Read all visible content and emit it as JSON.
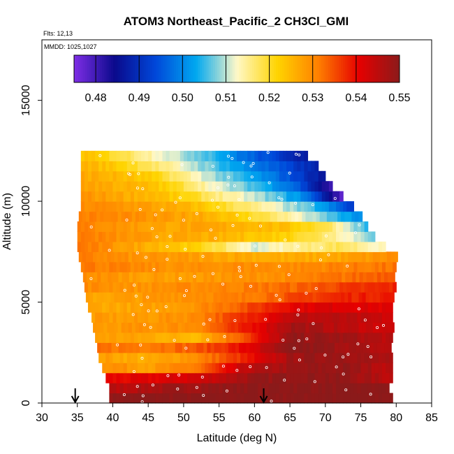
{
  "chart_data": {
    "type": "heatmap",
    "title": "ATOM3 Northeast_Pacific_2 CH3Cl_GMI",
    "flights_label": "Flts: 12,13",
    "dates_label": "MMDD: 1025,1027",
    "xlabel": "Latitude (deg N)",
    "ylabel": "Altitude (m)",
    "xlim": [
      30,
      85
    ],
    "ylim": [
      0,
      18000
    ],
    "x_ticks": [
      "30",
      "35",
      "40",
      "45",
      "50",
      "55",
      "60",
      "65",
      "70",
      "75",
      "80",
      "85"
    ],
    "y_ticks": [
      "0",
      "5000",
      "10000",
      "15000"
    ],
    "colorbar": {
      "range": [
        0.475,
        0.55
      ],
      "tick_labels": [
        "0.48",
        "0.49",
        "0.50",
        "0.51",
        "0.52",
        "0.53",
        "0.54",
        "0.55"
      ],
      "colors": [
        "#7f2ee6",
        "#0a0a8c",
        "#0047d9",
        "#00a8f0",
        "#fff8c8",
        "#ffd400",
        "#ff8000",
        "#e60000",
        "#8b1a1a"
      ]
    },
    "arrows_at_latitude": [
      34.7,
      61.3
    ],
    "altitude_bins_m": [
      250,
      750,
      1250,
      1750,
      2250,
      2750,
      3250,
      3750,
      4250,
      4750,
      5250,
      5750,
      6250,
      6750,
      7250,
      7750,
      8250,
      8750,
      9250,
      9750,
      10250,
      10750,
      11250,
      11750,
      12250
    ],
    "rows": [
      {
        "alt": 250,
        "lat_start": 39.5,
        "lat_end": 79.5,
        "values": [
          0.55,
          0.55
        ]
      },
      {
        "alt": 750,
        "lat_start": 39.5,
        "lat_end": 79.0,
        "values": [
          0.545,
          0.548,
          0.55,
          0.55,
          0.55
        ]
      },
      {
        "alt": 1250,
        "lat_start": 39.0,
        "lat_end": 79.5,
        "values": [
          0.54,
          0.541,
          0.543,
          0.548,
          0.55,
          0.549,
          0.545
        ]
      },
      {
        "alt": 1750,
        "lat_start": 38.5,
        "lat_end": 79.5,
        "values": [
          0.53,
          0.528,
          0.532,
          0.545,
          0.548,
          0.549,
          0.545
        ]
      },
      {
        "alt": 2250,
        "lat_start": 38.0,
        "lat_end": 79.5,
        "values": [
          0.528,
          0.526,
          0.53,
          0.538,
          0.548,
          0.549,
          0.546
        ]
      },
      {
        "alt": 2750,
        "lat_start": 37.8,
        "lat_end": 79.5,
        "values": [
          0.532,
          0.532,
          0.534,
          0.54,
          0.55,
          0.548,
          0.545
        ]
      },
      {
        "alt": 3250,
        "lat_start": 37.5,
        "lat_end": 79.5,
        "values": [
          0.528,
          0.527,
          0.525,
          0.535,
          0.549,
          0.548,
          0.545
        ]
      },
      {
        "alt": 3750,
        "lat_start": 37.2,
        "lat_end": 79.5,
        "values": [
          0.528,
          0.529,
          0.53,
          0.538,
          0.548,
          0.545,
          0.543
        ]
      },
      {
        "alt": 4250,
        "lat_start": 37.0,
        "lat_end": 79.5,
        "values": [
          0.528,
          0.528,
          0.53,
          0.537,
          0.545,
          0.545,
          0.543
        ]
      },
      {
        "alt": 4750,
        "lat_start": 36.5,
        "lat_end": 79.5,
        "values": [
          0.527,
          0.527,
          0.529,
          0.534,
          0.541,
          0.542,
          0.541
        ]
      },
      {
        "alt": 5250,
        "lat_start": 36.2,
        "lat_end": 79.5,
        "values": [
          0.527,
          0.528,
          0.53,
          0.531,
          0.535,
          0.538,
          0.539
        ]
      },
      {
        "alt": 5750,
        "lat_start": 36.0,
        "lat_end": 80.0,
        "values": [
          0.53,
          0.529,
          0.53,
          0.531,
          0.533,
          0.536,
          0.538
        ]
      },
      {
        "alt": 6250,
        "lat_start": 35.8,
        "lat_end": 80.0,
        "values": [
          0.53,
          0.528,
          0.528,
          0.529,
          0.53,
          0.532,
          0.535
        ]
      },
      {
        "alt": 6750,
        "lat_start": 35.5,
        "lat_end": 80.0,
        "values": [
          0.532,
          0.53,
          0.529,
          0.53,
          0.53,
          0.531,
          0.532
        ]
      },
      {
        "alt": 7250,
        "lat_start": 35.2,
        "lat_end": 80.0,
        "values": [
          0.531,
          0.529,
          0.528,
          0.527,
          0.526,
          0.527,
          0.53
        ]
      },
      {
        "alt": 7750,
        "lat_start": 35.0,
        "lat_end": 78.5,
        "values": [
          0.532,
          0.528,
          0.525,
          0.52,
          0.511,
          0.515,
          0.518,
          0.512
        ]
      },
      {
        "alt": 8250,
        "lat_start": 35.0,
        "lat_end": 77.0,
        "values": [
          0.532,
          0.529,
          0.527,
          0.526,
          0.524,
          0.522,
          0.516,
          0.508
        ]
      },
      {
        "alt": 8750,
        "lat_start": 35.0,
        "lat_end": 76.0,
        "values": [
          0.531,
          0.529,
          0.527,
          0.527,
          0.526,
          0.524,
          0.519,
          0.505
        ]
      },
      {
        "alt": 9250,
        "lat_start": 35.2,
        "lat_end": 75.0,
        "values": [
          0.531,
          0.53,
          0.528,
          0.527,
          0.522,
          0.516,
          0.508,
          0.5
        ]
      },
      {
        "alt": 9750,
        "lat_start": 35.5,
        "lat_end": 74.0,
        "values": [
          0.53,
          0.529,
          0.527,
          0.524,
          0.518,
          0.512,
          0.505,
          0.492
        ]
      },
      {
        "alt": 10250,
        "lat_start": 35.5,
        "lat_end": 72.5,
        "values": [
          0.529,
          0.527,
          0.525,
          0.52,
          0.514,
          0.508,
          0.5,
          0.478
        ]
      },
      {
        "alt": 10750,
        "lat_start": 35.5,
        "lat_end": 71.0,
        "values": [
          0.528,
          0.526,
          0.524,
          0.518,
          0.51,
          0.505,
          0.497,
          0.48
        ]
      },
      {
        "alt": 11250,
        "lat_start": 35.5,
        "lat_end": 70.0,
        "values": [
          0.527,
          0.525,
          0.522,
          0.515,
          0.508,
          0.502,
          0.495,
          0.486
        ]
      },
      {
        "alt": 11750,
        "lat_start": 35.5,
        "lat_end": 69.0,
        "values": [
          0.526,
          0.523,
          0.518,
          0.512,
          0.506,
          0.5,
          0.494,
          0.488
        ]
      },
      {
        "alt": 12250,
        "lat_start": 35.5,
        "lat_end": 67.5,
        "values": [
          0.524,
          0.52,
          0.515,
          0.51,
          0.506,
          0.498,
          0.493,
          0.487
        ]
      }
    ]
  }
}
